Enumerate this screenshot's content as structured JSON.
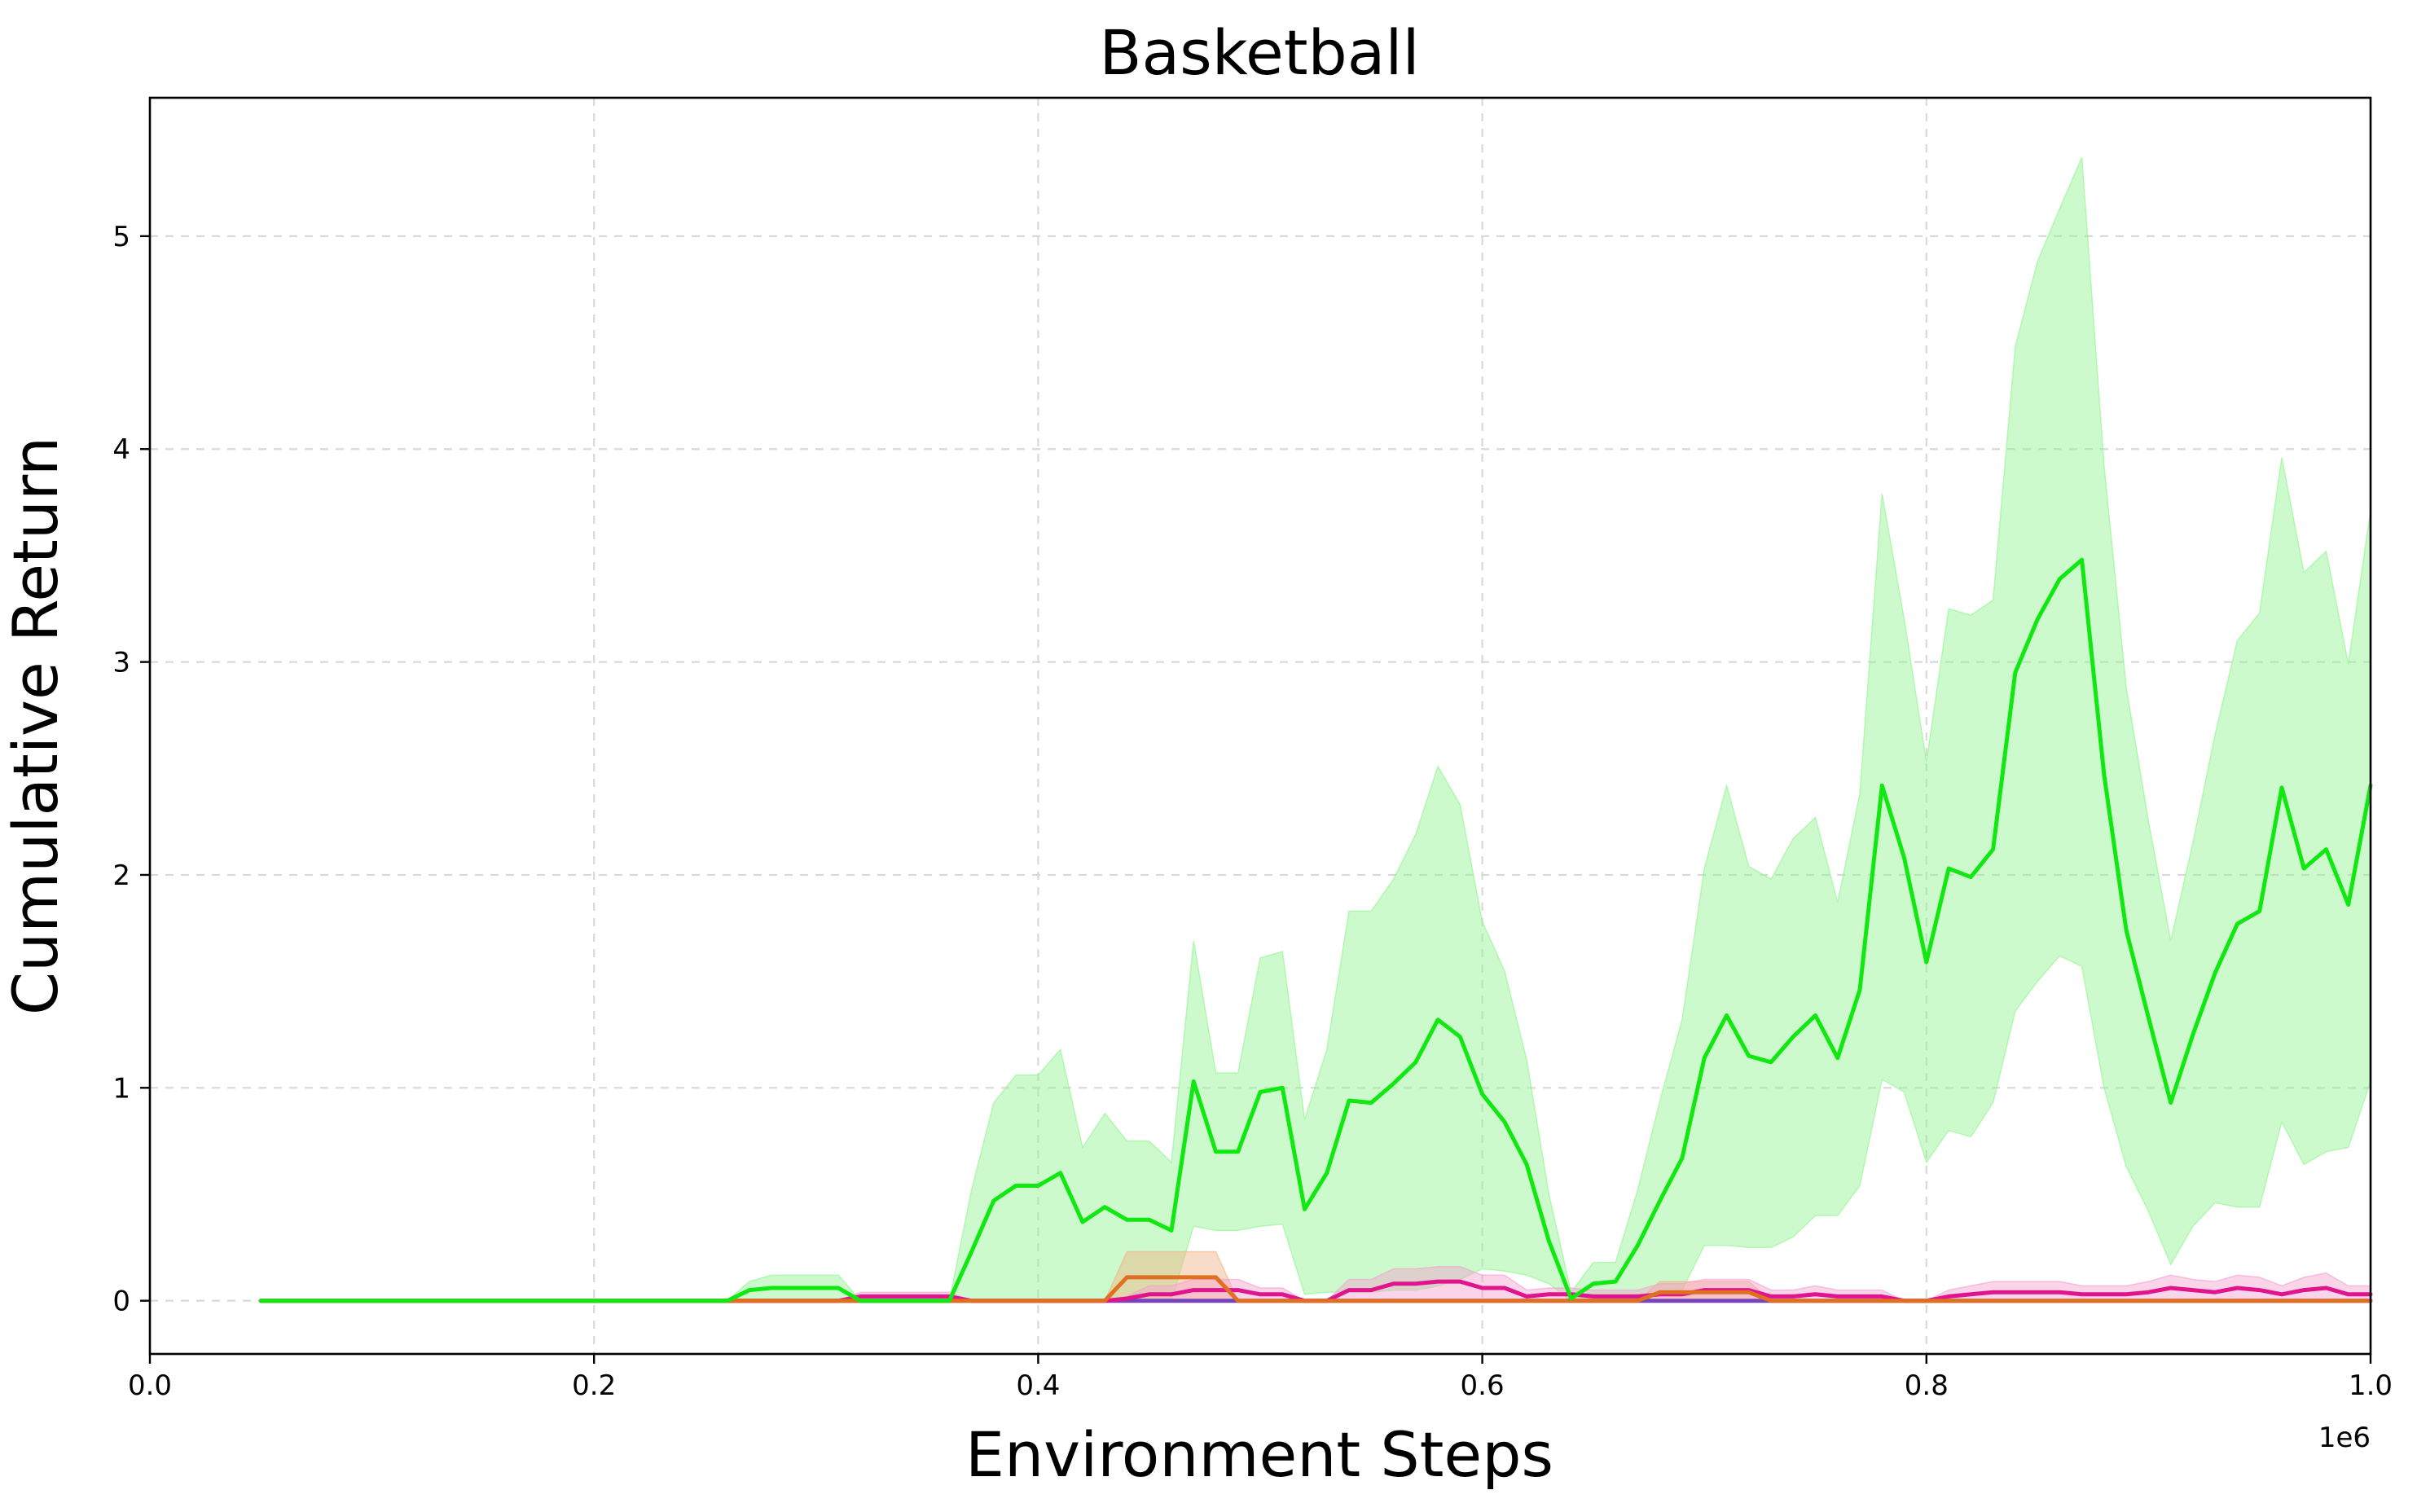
{
  "chart_data": {
    "type": "line",
    "title": "Basketball",
    "xlabel": "Environment Steps",
    "ylabel": "Cumulative Return",
    "x_offset_label": "1e6",
    "xlim": [
      0,
      1000000
    ],
    "ylim": [
      -0.25,
      5.65
    ],
    "xticks": [
      0,
      200000,
      400000,
      600000,
      800000,
      1000000
    ],
    "xtick_labels": [
      "0.0",
      "0.2",
      "0.4",
      "0.6",
      "0.8",
      "1.0"
    ],
    "yticks": [
      0,
      1,
      2,
      3,
      4,
      5
    ],
    "ytick_labels": [
      "0",
      "1",
      "2",
      "3",
      "4",
      "5"
    ],
    "grid": true,
    "x": [
      50000,
      60000,
      70000,
      80000,
      90000,
      100000,
      110000,
      120000,
      130000,
      140000,
      150000,
      160000,
      170000,
      180000,
      190000,
      200000,
      210000,
      220000,
      230000,
      240000,
      250000,
      260000,
      270000,
      280000,
      290000,
      300000,
      310000,
      320000,
      330000,
      340000,
      350000,
      360000,
      370000,
      380000,
      390000,
      400000,
      410000,
      420000,
      430000,
      440000,
      450000,
      460000,
      470000,
      480000,
      490000,
      500000,
      510000,
      520000,
      530000,
      540000,
      550000,
      560000,
      570000,
      580000,
      590000,
      600000,
      610000,
      620000,
      630000,
      640000,
      650000,
      660000,
      670000,
      680000,
      690000,
      700000,
      710000,
      720000,
      730000,
      740000,
      750000,
      760000,
      770000,
      780000,
      790000,
      800000,
      810000,
      820000,
      830000,
      840000,
      850000,
      860000,
      870000,
      880000,
      890000,
      900000,
      910000,
      920000,
      930000,
      940000,
      950000,
      960000,
      970000,
      980000,
      990000,
      1000000
    ],
    "series": [
      {
        "color": "#11e811",
        "band_color": "#90f590",
        "mean": [
          0,
          0,
          0,
          0,
          0,
          0,
          0,
          0,
          0,
          0,
          0,
          0,
          0,
          0,
          0,
          0,
          0,
          0,
          0,
          0,
          0,
          0,
          0.05,
          0.06,
          0.06,
          0.06,
          0.06,
          0,
          0,
          0,
          0,
          0,
          0.23,
          0.47,
          0.54,
          0.54,
          0.6,
          0.37,
          0.44,
          0.38,
          0.38,
          0.33,
          1.03,
          0.7,
          0.7,
          0.98,
          1.0,
          0.43,
          0.6,
          0.94,
          0.93,
          1.02,
          1.12,
          1.32,
          1.24,
          0.97,
          0.84,
          0.64,
          0.28,
          0.01,
          0.08,
          0.09,
          0.26,
          0.47,
          0.67,
          1.14,
          1.34,
          1.15,
          1.12,
          1.24,
          1.34,
          1.14,
          1.46,
          2.42,
          2.08,
          1.59,
          2.03,
          1.99,
          2.12,
          2.95,
          3.2,
          3.39,
          3.48,
          2.47,
          1.74,
          1.33,
          0.93,
          1.25,
          1.54,
          1.77,
          1.83,
          2.41,
          2.03,
          2.12,
          1.86,
          2.42
        ],
        "lower": [
          0,
          0,
          0,
          0,
          0,
          0,
          0,
          0,
          0,
          0,
          0,
          0,
          0,
          0,
          0,
          0,
          0,
          0,
          0,
          0,
          0,
          0,
          0,
          0,
          0,
          0,
          0,
          0,
          0,
          0,
          0,
          0,
          0,
          0,
          0,
          0,
          0,
          0,
          0,
          0,
          0,
          0,
          0.35,
          0.33,
          0.33,
          0.35,
          0.36,
          0.03,
          0.04,
          0.04,
          0.04,
          0.05,
          0.05,
          0.07,
          0.1,
          0.15,
          0.14,
          0.12,
          0.08,
          0,
          0,
          0,
          0.01,
          0.03,
          0.05,
          0.26,
          0.26,
          0.25,
          0.25,
          0.3,
          0.4,
          0.4,
          0.54,
          1.04,
          0.98,
          0.65,
          0.8,
          0.77,
          0.93,
          1.36,
          1.5,
          1.62,
          1.57,
          1.0,
          0.63,
          0.42,
          0.17,
          0.35,
          0.46,
          0.44,
          0.44,
          0.84,
          0.64,
          0.7,
          0.72,
          1.03
        ],
        "upper": [
          0,
          0,
          0,
          0,
          0,
          0,
          0,
          0,
          0,
          0,
          0,
          0,
          0,
          0,
          0,
          0,
          0,
          0,
          0,
          0,
          0,
          0,
          0.09,
          0.12,
          0.12,
          0.12,
          0.12,
          0,
          0,
          0,
          0,
          0,
          0.52,
          0.93,
          1.06,
          1.06,
          1.18,
          0.72,
          0.88,
          0.75,
          0.75,
          0.65,
          1.69,
          1.07,
          1.07,
          1.61,
          1.64,
          0.85,
          1.18,
          1.83,
          1.83,
          1.98,
          2.19,
          2.51,
          2.33,
          1.78,
          1.55,
          1.13,
          0.5,
          0.04,
          0.18,
          0.18,
          0.52,
          0.94,
          1.32,
          2.03,
          2.42,
          2.04,
          1.98,
          2.17,
          2.27,
          1.87,
          2.38,
          3.79,
          3.2,
          2.53,
          3.25,
          3.22,
          3.29,
          4.48,
          4.88,
          5.13,
          5.37,
          3.92,
          2.88,
          2.25,
          1.69,
          2.15,
          2.66,
          3.1,
          3.23,
          3.96,
          3.42,
          3.52,
          2.99,
          3.71
        ]
      },
      {
        "color": "#e07020",
        "band_color": "#f2b183",
        "mean": [
          0,
          0,
          0,
          0,
          0,
          0,
          0,
          0,
          0,
          0,
          0,
          0,
          0,
          0,
          0,
          0,
          0,
          0,
          0,
          0,
          0,
          0,
          0,
          0,
          0,
          0,
          0,
          0,
          0,
          0,
          0,
          0,
          0,
          0,
          0,
          0,
          0,
          0,
          0,
          0.11,
          0.11,
          0.11,
          0.11,
          0.11,
          0,
          0,
          0,
          0,
          0,
          0,
          0,
          0,
          0,
          0,
          0,
          0,
          0,
          0,
          0,
          0,
          0,
          0,
          0,
          0.04,
          0.04,
          0.04,
          0.04,
          0.04,
          0,
          0,
          0,
          0,
          0,
          0,
          0,
          0,
          0,
          0,
          0,
          0,
          0,
          0,
          0,
          0,
          0,
          0,
          0,
          0,
          0,
          0,
          0,
          0,
          0,
          0,
          0,
          0
        ],
        "lower": [
          0,
          0,
          0,
          0,
          0,
          0,
          0,
          0,
          0,
          0,
          0,
          0,
          0,
          0,
          0,
          0,
          0,
          0,
          0,
          0,
          0,
          0,
          0,
          0,
          0,
          0,
          0,
          0,
          0,
          0,
          0,
          0,
          0,
          0,
          0,
          0,
          0,
          0,
          0,
          0,
          0,
          0,
          0,
          0,
          0,
          0,
          0,
          0,
          0,
          0,
          0,
          0,
          0,
          0,
          0,
          0,
          0,
          0,
          0,
          0,
          0,
          0,
          0,
          0,
          0,
          0,
          0,
          0,
          0,
          0,
          0,
          0,
          0,
          0,
          0,
          0,
          0,
          0,
          0,
          0,
          0,
          0,
          0,
          0,
          0,
          0,
          0,
          0,
          0,
          0,
          0,
          0,
          0,
          0,
          0,
          0
        ],
        "upper": [
          0,
          0,
          0,
          0,
          0,
          0,
          0,
          0,
          0,
          0,
          0,
          0,
          0,
          0,
          0,
          0,
          0,
          0,
          0,
          0,
          0,
          0,
          0,
          0,
          0,
          0,
          0,
          0,
          0,
          0,
          0,
          0,
          0,
          0,
          0,
          0,
          0,
          0,
          0,
          0.23,
          0.23,
          0.23,
          0.23,
          0.23,
          0,
          0,
          0,
          0,
          0,
          0,
          0,
          0,
          0,
          0,
          0,
          0,
          0,
          0,
          0,
          0,
          0,
          0,
          0,
          0.09,
          0.09,
          0.09,
          0.09,
          0.09,
          0,
          0,
          0,
          0,
          0,
          0,
          0,
          0,
          0,
          0,
          0,
          0,
          0,
          0,
          0,
          0,
          0,
          0,
          0,
          0,
          0,
          0,
          0,
          0,
          0,
          0,
          0,
          0
        ]
      },
      {
        "color": "#e0158e",
        "band_color": "#f49fcf",
        "mean": [
          0,
          0,
          0,
          0,
          0,
          0,
          0,
          0,
          0,
          0,
          0,
          0,
          0,
          0,
          0,
          0,
          0,
          0,
          0,
          0,
          0,
          0,
          0,
          0,
          0,
          0,
          0,
          0.02,
          0.02,
          0.02,
          0.02,
          0.02,
          0,
          0,
          0,
          0,
          0,
          0,
          0,
          0.01,
          0.03,
          0.03,
          0.05,
          0.05,
          0.05,
          0.03,
          0.03,
          0,
          0,
          0.05,
          0.05,
          0.08,
          0.08,
          0.09,
          0.09,
          0.06,
          0.06,
          0.02,
          0.03,
          0.03,
          0.02,
          0.02,
          0.02,
          0.03,
          0.03,
          0.05,
          0.05,
          0.05,
          0.02,
          0.02,
          0.03,
          0.02,
          0.02,
          0.02,
          0,
          0,
          0.02,
          0.03,
          0.04,
          0.04,
          0.04,
          0.04,
          0.03,
          0.03,
          0.03,
          0.04,
          0.06,
          0.05,
          0.04,
          0.06,
          0.05,
          0.03,
          0.05,
          0.06,
          0.03,
          0.03
        ],
        "lower": [
          0,
          0,
          0,
          0,
          0,
          0,
          0,
          0,
          0,
          0,
          0,
          0,
          0,
          0,
          0,
          0,
          0,
          0,
          0,
          0,
          0,
          0,
          0,
          0,
          0,
          0,
          0,
          0,
          0,
          0,
          0,
          0,
          0,
          0,
          0,
          0,
          0,
          0,
          0,
          0,
          0,
          0,
          0,
          0,
          0,
          0,
          0,
          0,
          0,
          0,
          0,
          0,
          0,
          0,
          0,
          0,
          0,
          0,
          0,
          0,
          0,
          0,
          0,
          0,
          0,
          0,
          0,
          0,
          0,
          0,
          0,
          0,
          0,
          0,
          0,
          0,
          0,
          0,
          0,
          0,
          0,
          0,
          0,
          0,
          0,
          0,
          0,
          0,
          0,
          0,
          0,
          0,
          0,
          0,
          0,
          0
        ],
        "upper": [
          0,
          0,
          0,
          0,
          0,
          0,
          0,
          0,
          0,
          0,
          0,
          0,
          0,
          0,
          0,
          0,
          0,
          0,
          0,
          0,
          0,
          0,
          0,
          0,
          0,
          0,
          0,
          0.04,
          0.04,
          0.04,
          0.04,
          0.04,
          0,
          0,
          0,
          0,
          0,
          0,
          0,
          0.02,
          0.07,
          0.07,
          0.1,
          0.1,
          0.1,
          0.06,
          0.06,
          0,
          0,
          0.1,
          0.1,
          0.15,
          0.15,
          0.16,
          0.16,
          0.12,
          0.12,
          0.05,
          0.06,
          0.06,
          0.05,
          0.05,
          0.05,
          0.08,
          0.08,
          0.1,
          0.1,
          0.1,
          0.05,
          0.05,
          0.07,
          0.05,
          0.05,
          0.05,
          0,
          0,
          0.05,
          0.07,
          0.09,
          0.09,
          0.09,
          0.09,
          0.07,
          0.07,
          0.07,
          0.09,
          0.12,
          0.1,
          0.09,
          0.12,
          0.11,
          0.07,
          0.11,
          0.13,
          0.07,
          0.07
        ]
      },
      {
        "color": "#7744bb",
        "band_color": "#c3a8e3",
        "mean": [
          0,
          0,
          0,
          0,
          0,
          0,
          0,
          0,
          0,
          0,
          0,
          0,
          0,
          0,
          0,
          0,
          0,
          0,
          0,
          0,
          0,
          0,
          0,
          0,
          0,
          0,
          0,
          0,
          0,
          0,
          0,
          0,
          0,
          0,
          0,
          0,
          0,
          0,
          0,
          0,
          0,
          0,
          0,
          0,
          0,
          0,
          0,
          0,
          0,
          0,
          0,
          0,
          0,
          0,
          0,
          0,
          0,
          0,
          0,
          0,
          0,
          0,
          0,
          0,
          0,
          0,
          0,
          0,
          0,
          0,
          0,
          0,
          0,
          0,
          0,
          0,
          0,
          0,
          0,
          0,
          0,
          0,
          0,
          0,
          0,
          0,
          0,
          0,
          0,
          0,
          0,
          0,
          0,
          0,
          0,
          0
        ],
        "lower": [
          0,
          0,
          0,
          0,
          0,
          0,
          0,
          0,
          0,
          0,
          0,
          0,
          0,
          0,
          0,
          0,
          0,
          0,
          0,
          0,
          0,
          0,
          0,
          0,
          0,
          0,
          0,
          0,
          0,
          0,
          0,
          0,
          0,
          0,
          0,
          0,
          0,
          0,
          0,
          0,
          0,
          0,
          0,
          0,
          0,
          0,
          0,
          0,
          0,
          0,
          0,
          0,
          0,
          0,
          0,
          0,
          0,
          0,
          0,
          0,
          0,
          0,
          0,
          0,
          0,
          0,
          0,
          0,
          0,
          0,
          0,
          0,
          0,
          0,
          0,
          0,
          0,
          0,
          0,
          0,
          0,
          0,
          0,
          0,
          0,
          0,
          0,
          0,
          0,
          0,
          0,
          0,
          0,
          0,
          0,
          0
        ],
        "upper": [
          0,
          0,
          0,
          0,
          0,
          0,
          0,
          0,
          0,
          0,
          0,
          0,
          0,
          0,
          0,
          0,
          0,
          0,
          0,
          0,
          0,
          0,
          0,
          0,
          0,
          0,
          0,
          0,
          0,
          0,
          0,
          0,
          0,
          0,
          0,
          0,
          0,
          0,
          0,
          0,
          0,
          0,
          0,
          0,
          0,
          0,
          0,
          0,
          0,
          0,
          0,
          0,
          0,
          0,
          0,
          0,
          0,
          0,
          0,
          0,
          0,
          0,
          0,
          0,
          0,
          0,
          0,
          0,
          0,
          0,
          0,
          0,
          0,
          0,
          0,
          0,
          0,
          0,
          0,
          0,
          0,
          0,
          0,
          0,
          0,
          0,
          0,
          0,
          0,
          0,
          0,
          0,
          0,
          0,
          0,
          0
        ]
      }
    ]
  }
}
